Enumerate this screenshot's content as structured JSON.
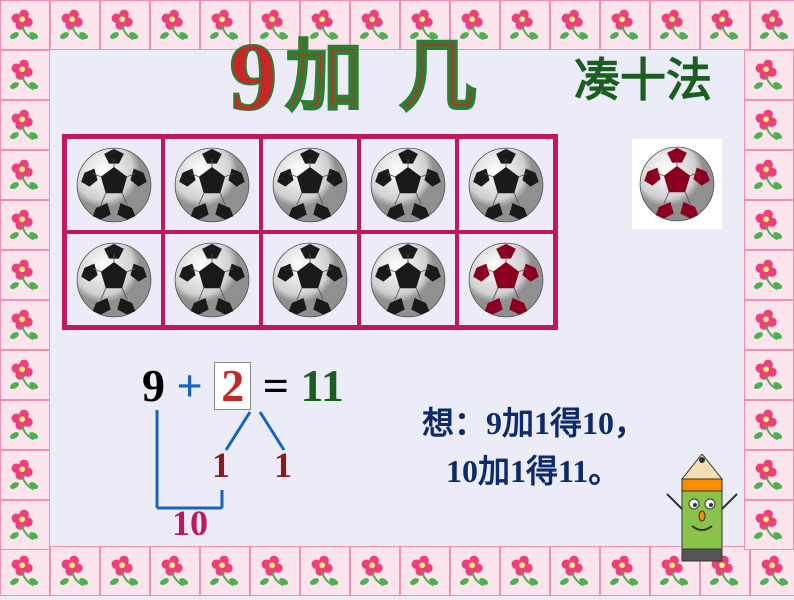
{
  "title": {
    "main_nine": "9",
    "main_text": "加 几",
    "subtitle": "凑十法",
    "main_color": "#c62828",
    "main_stroke": "#2e7d32",
    "sub_color": "#1b5e20"
  },
  "grid": {
    "rows": 2,
    "cols": 5,
    "border_color": "#c2185b",
    "cells": [
      {
        "type": "black"
      },
      {
        "type": "black"
      },
      {
        "type": "black"
      },
      {
        "type": "black"
      },
      {
        "type": "black"
      },
      {
        "type": "black"
      },
      {
        "type": "black"
      },
      {
        "type": "black"
      },
      {
        "type": "black"
      },
      {
        "type": "red"
      }
    ],
    "extra": {
      "type": "red"
    }
  },
  "equation": {
    "first": "9",
    "op": "+",
    "second": "2",
    "equals": "=",
    "result": "11",
    "colors": {
      "first": "#000000",
      "op": "#1565c0",
      "second": "#c62828",
      "equals": "#000000",
      "result": "#1b5e20"
    }
  },
  "branch": {
    "left_split": "1",
    "right_split": "1",
    "sum_label": "10",
    "line_color": "#1565c0",
    "split_color": "#8b1a1a",
    "sum_color": "#c2185b"
  },
  "explanation": {
    "prefix": "想：",
    "line1": "9加1得10，",
    "line2": "10加1得11。",
    "color": "#0d2b6b"
  },
  "style": {
    "background": "#ecebf8",
    "frame_bg": "#fce4ec",
    "frame_border": "#f48fb1",
    "flower_pink": "#ec407a",
    "flower_leaf": "#4caf50"
  }
}
